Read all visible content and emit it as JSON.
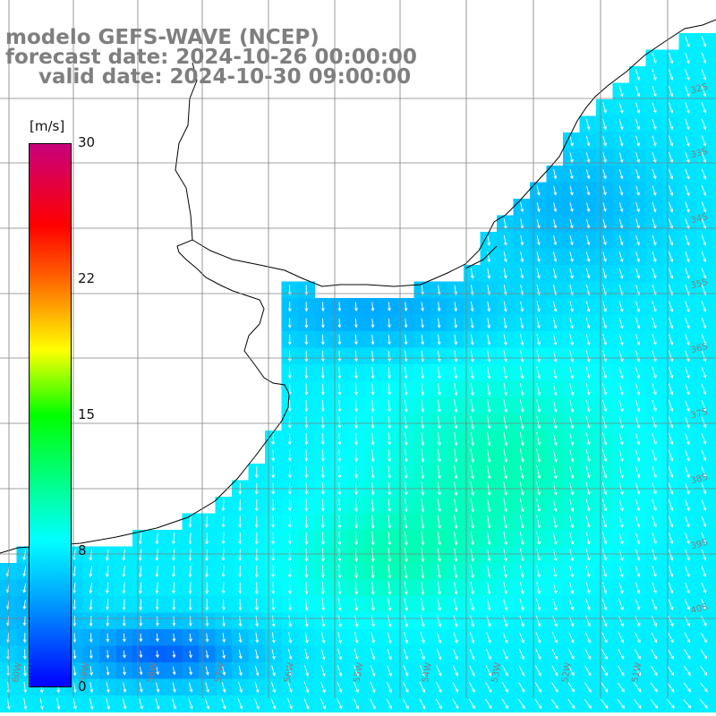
{
  "title": {
    "line1": "modelo GEFS-WAVE (NCEP)",
    "line2": "forecast date: 2024-10-26 00:00:00",
    "line3": "valid date: 2024-10-30 09:00:00"
  },
  "colorbar": {
    "unit": "[m/s]",
    "ticks": [
      "30",
      "22",
      "15",
      "8",
      "0"
    ],
    "colors": [
      "#0000ff",
      "#00aaff",
      "#00ffff",
      "#00ff00",
      "#ffff00",
      "#ff6600",
      "#ff0000",
      "#c8007d"
    ]
  },
  "map": {
    "lat_labels": [
      "32S",
      "33S",
      "34S",
      "35S",
      "36S",
      "37S",
      "38S",
      "39S",
      "40S"
    ],
    "lon_labels": [
      "60W",
      "59W",
      "58W",
      "57W",
      "56W",
      "55W",
      "54W",
      "53W",
      "52W",
      "51W"
    ],
    "land_color": "#ffffff",
    "grid_color": "#808080",
    "arrow_color": "#ffffff"
  }
}
